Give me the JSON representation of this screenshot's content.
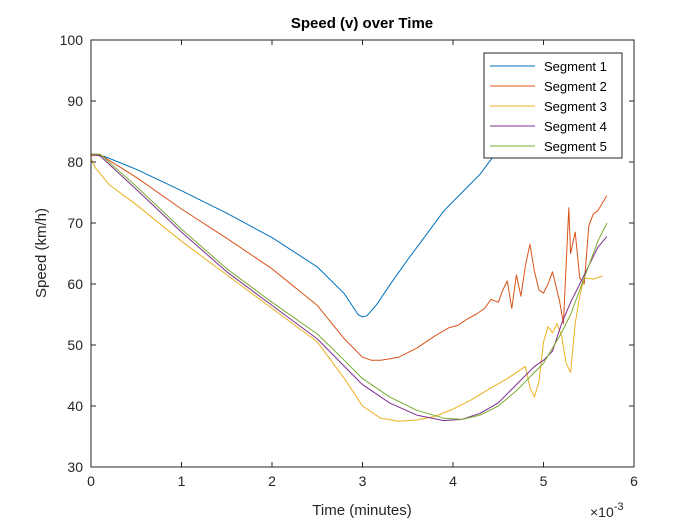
{
  "chart_data": {
    "type": "line",
    "title": "Speed (v) over Time",
    "xlabel": "Time (minutes)",
    "ylabel": "Speed (km/h)",
    "x_exponent_base": "×10",
    "x_exponent_power": "-3",
    "xlim": [
      0,
      6
    ],
    "ylim": [
      30,
      100
    ],
    "x_ticks": [
      0,
      1,
      2,
      3,
      4,
      5,
      6
    ],
    "y_ticks": [
      30,
      40,
      50,
      60,
      70,
      80,
      90,
      100
    ],
    "grid": false,
    "legend_position": "top-right",
    "series": [
      {
        "name": "Segment 1",
        "color": "#0072BD",
        "points": [
          [
            0,
            81.3
          ],
          [
            0.15,
            80.9
          ],
          [
            0.5,
            78.8
          ],
          [
            1.0,
            75.3
          ],
          [
            1.5,
            71.6
          ],
          [
            2.0,
            67.6
          ],
          [
            2.5,
            62.8
          ],
          [
            2.8,
            58.4
          ],
          [
            2.95,
            55.0
          ],
          [
            3.0,
            54.6
          ],
          [
            3.05,
            54.8
          ],
          [
            3.15,
            56.5
          ],
          [
            3.3,
            59.8
          ],
          [
            3.5,
            64.0
          ],
          [
            3.7,
            68.0
          ],
          [
            3.9,
            72.0
          ],
          [
            4.1,
            75.0
          ],
          [
            4.3,
            78.0
          ],
          [
            4.45,
            81.0
          ]
        ]
      },
      {
        "name": "Segment 2",
        "color": "#D95319",
        "points": [
          [
            0,
            81.0
          ],
          [
            0.1,
            81.2
          ],
          [
            0.5,
            77.5
          ],
          [
            1.0,
            72.3
          ],
          [
            1.5,
            67.5
          ],
          [
            2.0,
            62.5
          ],
          [
            2.5,
            56.5
          ],
          [
            2.8,
            51.0
          ],
          [
            3.0,
            48.0
          ],
          [
            3.1,
            47.5
          ],
          [
            3.2,
            47.5
          ],
          [
            3.4,
            48.0
          ],
          [
            3.6,
            49.5
          ],
          [
            3.8,
            51.5
          ],
          [
            3.95,
            52.8
          ],
          [
            4.05,
            53.2
          ],
          [
            4.15,
            54.2
          ],
          [
            4.25,
            55.0
          ],
          [
            4.3,
            55.5
          ],
          [
            4.35,
            56.0
          ],
          [
            4.42,
            57.5
          ],
          [
            4.5,
            57.0
          ],
          [
            4.55,
            59.0
          ],
          [
            4.6,
            60.5
          ],
          [
            4.65,
            56.0
          ],
          [
            4.7,
            61.5
          ],
          [
            4.75,
            58.0
          ],
          [
            4.8,
            63.0
          ],
          [
            4.85,
            66.5
          ],
          [
            4.9,
            62.0
          ],
          [
            4.95,
            59.0
          ],
          [
            5.0,
            58.5
          ],
          [
            5.05,
            60.0
          ],
          [
            5.1,
            62.0
          ],
          [
            5.18,
            57.0
          ],
          [
            5.22,
            53.5
          ],
          [
            5.28,
            72.5
          ],
          [
            5.3,
            65.0
          ],
          [
            5.35,
            68.5
          ],
          [
            5.4,
            61.0
          ],
          [
            5.45,
            60.0
          ],
          [
            5.5,
            69.5
          ],
          [
            5.55,
            71.5
          ],
          [
            5.6,
            72.0
          ],
          [
            5.7,
            74.5
          ]
        ]
      },
      {
        "name": "Segment 3",
        "color": "#EDB120",
        "points": [
          [
            0,
            80.5
          ],
          [
            0.05,
            79.0
          ],
          [
            0.2,
            76.3
          ],
          [
            0.5,
            73.0
          ],
          [
            1.0,
            67.0
          ],
          [
            1.5,
            61.5
          ],
          [
            2.0,
            56.0
          ],
          [
            2.5,
            50.5
          ],
          [
            2.8,
            44.5
          ],
          [
            3.0,
            40.0
          ],
          [
            3.2,
            38.0
          ],
          [
            3.4,
            37.5
          ],
          [
            3.6,
            37.7
          ],
          [
            3.8,
            38.3
          ],
          [
            4.0,
            39.5
          ],
          [
            4.2,
            41.0
          ],
          [
            4.4,
            42.8
          ],
          [
            4.6,
            44.5
          ],
          [
            4.8,
            46.5
          ],
          [
            4.85,
            43.0
          ],
          [
            4.9,
            41.5
          ],
          [
            4.95,
            44.0
          ],
          [
            5.0,
            50.5
          ],
          [
            5.05,
            53.0
          ],
          [
            5.1,
            52.0
          ],
          [
            5.15,
            53.5
          ],
          [
            5.2,
            51.5
          ],
          [
            5.25,
            47.0
          ],
          [
            5.3,
            45.5
          ],
          [
            5.35,
            53.5
          ],
          [
            5.4,
            58.0
          ],
          [
            5.45,
            61.0
          ],
          [
            5.55,
            60.8
          ],
          [
            5.65,
            61.3
          ]
        ]
      },
      {
        "name": "Segment 4",
        "color": "#7E2F8E",
        "points": [
          [
            0,
            81.3
          ],
          [
            0.1,
            81.0
          ],
          [
            0.5,
            75.5
          ],
          [
            1.0,
            68.5
          ],
          [
            1.5,
            62.0
          ],
          [
            2.0,
            56.5
          ],
          [
            2.5,
            51.0
          ],
          [
            2.8,
            46.5
          ],
          [
            3.0,
            43.5
          ],
          [
            3.3,
            40.5
          ],
          [
            3.6,
            38.5
          ],
          [
            3.9,
            37.6
          ],
          [
            4.1,
            37.8
          ],
          [
            4.3,
            38.8
          ],
          [
            4.5,
            40.5
          ],
          [
            4.7,
            43.5
          ],
          [
            4.9,
            46.5
          ],
          [
            5.0,
            47.5
          ],
          [
            5.1,
            49.0
          ],
          [
            5.2,
            53.5
          ],
          [
            5.3,
            57.0
          ],
          [
            5.4,
            60.0
          ],
          [
            5.5,
            63.0
          ],
          [
            5.6,
            66.0
          ],
          [
            5.7,
            67.8
          ]
        ]
      },
      {
        "name": "Segment 5",
        "color": "#77AC30",
        "points": [
          [
            0,
            81.3
          ],
          [
            0.1,
            81.3
          ],
          [
            0.5,
            76.0
          ],
          [
            1.0,
            69.0
          ],
          [
            1.5,
            62.5
          ],
          [
            2.0,
            57.0
          ],
          [
            2.5,
            51.8
          ],
          [
            2.8,
            47.5
          ],
          [
            3.0,
            44.5
          ],
          [
            3.3,
            41.5
          ],
          [
            3.6,
            39.3
          ],
          [
            3.9,
            38.0
          ],
          [
            4.1,
            37.8
          ],
          [
            4.3,
            38.5
          ],
          [
            4.5,
            40.0
          ],
          [
            4.7,
            42.5
          ],
          [
            4.9,
            45.5
          ],
          [
            5.0,
            47.0
          ],
          [
            5.1,
            49.5
          ],
          [
            5.2,
            52.0
          ],
          [
            5.3,
            55.0
          ],
          [
            5.4,
            59.0
          ],
          [
            5.5,
            63.0
          ],
          [
            5.6,
            67.0
          ],
          [
            5.7,
            70.0
          ]
        ]
      }
    ]
  }
}
